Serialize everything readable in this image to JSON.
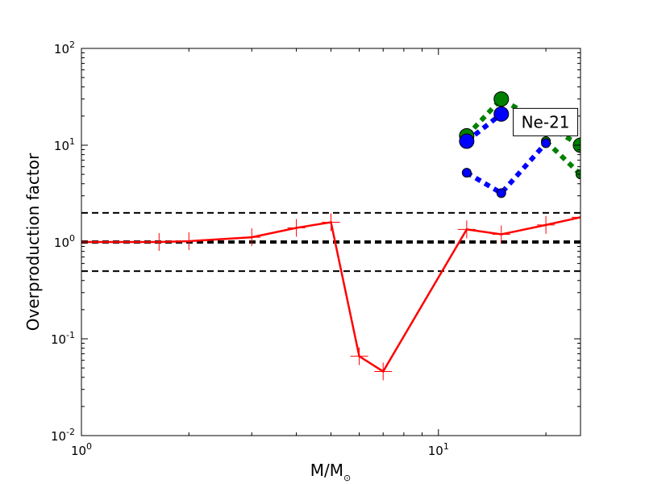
{
  "chart_data": {
    "type": "line",
    "xlabel": "M/M",
    "xlabel_sub": "⊙",
    "ylabel": "Overproduction factor",
    "x_scale": "log",
    "y_scale": "log",
    "xlim": [
      1,
      25
    ],
    "ylim": [
      0.01,
      100
    ],
    "x_ticks": [
      {
        "value": 1,
        "base": "10",
        "exp": "0"
      },
      {
        "value": 10,
        "base": "10",
        "exp": "1"
      }
    ],
    "y_ticks": [
      {
        "value": 0.01,
        "base": "10",
        "exp": "-2"
      },
      {
        "value": 0.1,
        "base": "10",
        "exp": "-1"
      },
      {
        "value": 1,
        "base": "10",
        "exp": "0"
      },
      {
        "value": 10,
        "base": "10",
        "exp": "1"
      },
      {
        "value": 100,
        "base": "10",
        "exp": "2"
      }
    ],
    "reference_lines": [
      {
        "y": 2.0,
        "color": "#000000",
        "style": "dashed",
        "width": 2
      },
      {
        "y": 1.0,
        "color": "#000000",
        "style": "dashed",
        "width": 4
      },
      {
        "y": 0.5,
        "color": "#000000",
        "style": "dashed",
        "width": 2
      }
    ],
    "annotation": {
      "text": "Ne-21",
      "x": 16.2,
      "y": 24
    },
    "series": [
      {
        "color": "#ff0000",
        "line": "solid",
        "marker": "plus",
        "x": [
          1.0,
          1.65,
          2.0,
          3.0,
          4.0,
          5.0,
          6.0,
          7.0,
          12.0,
          15.0,
          20.0,
          25.0
        ],
        "y": [
          1.0,
          1.0,
          1.02,
          1.12,
          1.4,
          1.6,
          0.066,
          0.046,
          1.35,
          1.2,
          1.5,
          1.8
        ]
      },
      {
        "color": "#008000",
        "line": "dotted",
        "marker": "circle-large",
        "x": [
          12.0,
          15.0,
          20.0,
          25.0
        ],
        "y": [
          12.5,
          30.0,
          16.0,
          10.0
        ]
      },
      {
        "color": "#008000",
        "line": "dotted",
        "marker": "circle-small",
        "x": [
          20.0,
          25.0
        ],
        "y": [
          11.0,
          5.0
        ]
      },
      {
        "color": "#0000ff",
        "line": "dotted",
        "marker": "circle-large",
        "x": [
          12.0,
          15.0
        ],
        "y": [
          11.0,
          21.0
        ]
      },
      {
        "color": "#0000ff",
        "line": "dotted",
        "marker": "circle-small",
        "x": [
          12.0,
          15.0,
          20.0
        ],
        "y": [
          5.2,
          3.2,
          10.5
        ]
      }
    ]
  }
}
